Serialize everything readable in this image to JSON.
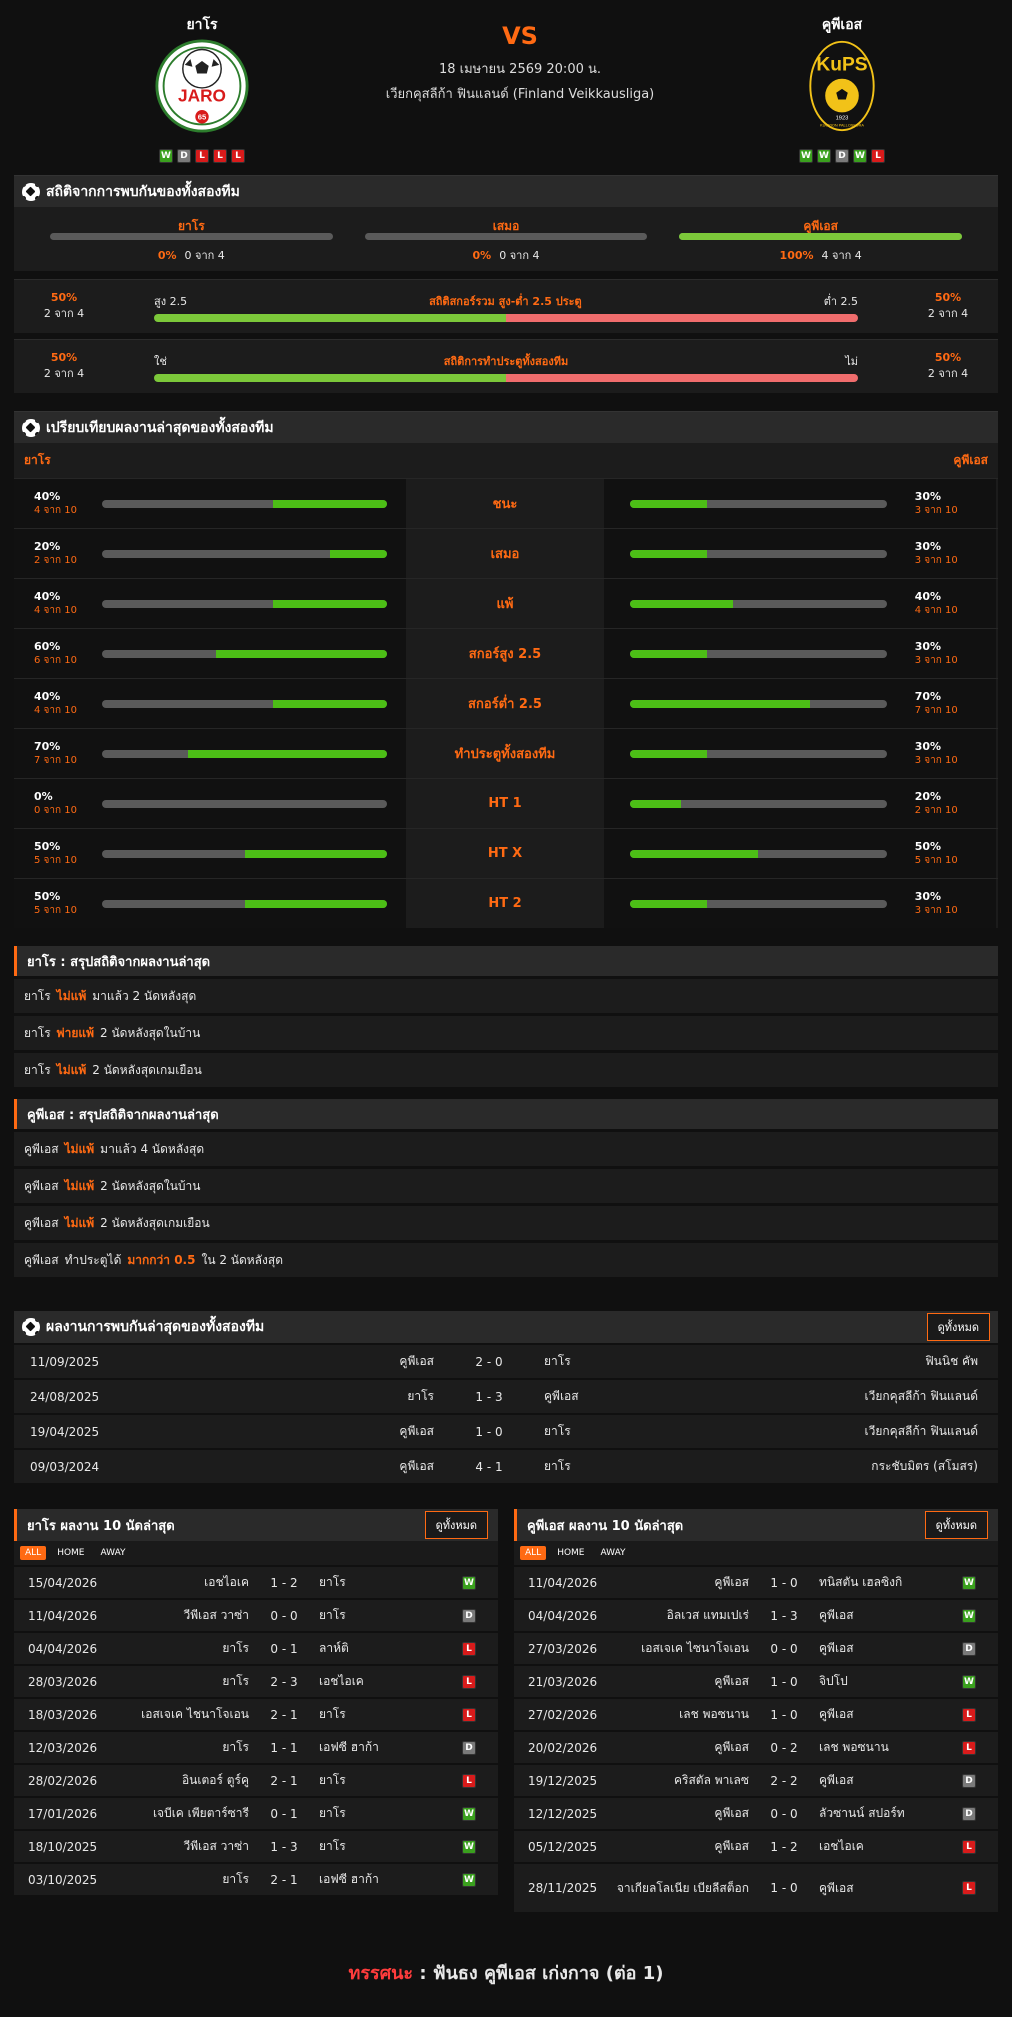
{
  "header": {
    "home_name": "ยาโร",
    "away_name": "คูพีเอส",
    "vs": "VS",
    "datetime": "18 เมษายน 2569 20:00 น.",
    "league": "เวียกคุสลีก้า ฟินแลนด์ (Finland Veikkausliga)",
    "home_form": [
      "W",
      "D",
      "L",
      "L",
      "L"
    ],
    "away_form": [
      "W",
      "W",
      "D",
      "W",
      "L"
    ],
    "home_logo_text": "JARO",
    "home_logo_year": "65",
    "away_logo_text": "KuPS",
    "away_logo_year": "1923",
    "away_logo_ring": "KUOPION PALLOSEURA"
  },
  "h2h_stats": {
    "title": "สถิติจากการพบกันของทั้งสองทีม",
    "cols": [
      {
        "label": "ยาโร",
        "pct": "0%",
        "count": "0 จาก 4",
        "fill": 0
      },
      {
        "label": "เสมอ",
        "pct": "0%",
        "count": "0 จาก 4",
        "fill": 0
      },
      {
        "label": "คูพีเอส",
        "pct": "100%",
        "count": "4 จาก 4",
        "fill": 1
      }
    ],
    "ou": {
      "left_pct": "50%",
      "left_count": "2 จาก 4",
      "left_label": "สูง 2.5",
      "center": "สถิติสกอร์รวม สูง-ต่ำ 2.5 ประตู",
      "right_label": "ต่ำ 2.5",
      "right_pct": "50%",
      "right_count": "2 จาก 4",
      "split": 0.5
    },
    "btts": {
      "left_pct": "50%",
      "left_count": "2 จาก 4",
      "left_label": "ใช่",
      "center": "สถิติการทำประตูทั้งสองทีม",
      "right_label": "ไม่",
      "right_pct": "50%",
      "right_count": "2 จาก 4",
      "split": 0.5
    }
  },
  "compare": {
    "title": "เปรียบเทียบผลงานล่าสุดของทั้งสองทีม",
    "home": "ยาโร",
    "away": "คูพีเอส",
    "rows": [
      {
        "label": "ชนะ",
        "hp": "40%",
        "hc": "4 จาก 10",
        "hv": 0.4,
        "ap": "30%",
        "ac": "3 จาก 10",
        "av": 0.3
      },
      {
        "label": "เสมอ",
        "hp": "20%",
        "hc": "2 จาก 10",
        "hv": 0.2,
        "ap": "30%",
        "ac": "3 จาก 10",
        "av": 0.3
      },
      {
        "label": "แพ้",
        "hp": "40%",
        "hc": "4 จาก 10",
        "hv": 0.4,
        "ap": "40%",
        "ac": "4 จาก 10",
        "av": 0.4
      },
      {
        "label": "สกอร์สูง 2.5",
        "hp": "60%",
        "hc": "6 จาก 10",
        "hv": 0.6,
        "ap": "30%",
        "ac": "3 จาก 10",
        "av": 0.3
      },
      {
        "label": "สกอร์ต่ำ 2.5",
        "hp": "40%",
        "hc": "4 จาก 10",
        "hv": 0.4,
        "ap": "70%",
        "ac": "7 จาก 10",
        "av": 0.7
      },
      {
        "label": "ทำประตูทั้งสองทีม",
        "hp": "70%",
        "hc": "7 จาก 10",
        "hv": 0.7,
        "ap": "30%",
        "ac": "3 จาก 10",
        "av": 0.3
      },
      {
        "label": "HT 1",
        "hp": "0%",
        "hc": "0 จาก 10",
        "hv": 0,
        "ap": "20%",
        "ac": "2 จาก 10",
        "av": 0.2
      },
      {
        "label": "HT X",
        "hp": "50%",
        "hc": "5 จาก 10",
        "hv": 0.5,
        "ap": "50%",
        "ac": "5 จาก 10",
        "av": 0.5
      },
      {
        "label": "HT 2",
        "hp": "50%",
        "hc": "5 จาก 10",
        "hv": 0.5,
        "ap": "30%",
        "ac": "3 จาก 10",
        "av": 0.3
      }
    ]
  },
  "home_summary": {
    "title": "ยาโร : สรุปสถิติจากผลงานล่าสุด",
    "rows": [
      {
        "team": "ยาโร",
        "hl": "ไม่แพ้",
        "rest": "มาแล้ว 2 นัดหลังสุด"
      },
      {
        "team": "ยาโร",
        "hl": "พ่ายแพ้",
        "rest": "2 นัดหลังสุดในบ้าน"
      },
      {
        "team": "ยาโร",
        "hl": "ไม่แพ้",
        "rest": "2 นัดหลังสุดเกมเยือน"
      }
    ]
  },
  "away_summary": {
    "title": "คูพีเอส : สรุปสถิติจากผลงานล่าสุด",
    "rows": [
      {
        "team": "คูพีเอส",
        "pre": "",
        "hl": "ไม่แพ้",
        "rest": "มาแล้ว 4 นัดหลังสุด"
      },
      {
        "team": "คูพีเอส",
        "pre": "",
        "hl": "ไม่แพ้",
        "rest": "2 นัดหลังสุดในบ้าน"
      },
      {
        "team": "คูพีเอส",
        "pre": "",
        "hl": "ไม่แพ้",
        "rest": "2 นัดหลังสุดเกมเยือน"
      },
      {
        "team": "คูพีเอส",
        "pre": "ทำประตูได้",
        "hl": "มากกว่า 0.5",
        "rest": "ใน 2 นัดหลังสุด"
      }
    ]
  },
  "h2h_results": {
    "title": "ผลงานการพบกันล่าสุดของทั้งสองทีม",
    "view_all": "ดูทั้งหมด",
    "rows": [
      {
        "date": "11/09/2025",
        "home": "คูพีเอส",
        "score": "2 - 0",
        "away": "ยาโร",
        "comp": "ฟินนิช คัพ"
      },
      {
        "date": "24/08/2025",
        "home": "ยาโร",
        "score": "1 - 3",
        "away": "คูพีเอส",
        "comp": "เวียกคุสลีก้า ฟินแลนด์"
      },
      {
        "date": "19/04/2025",
        "home": "คูพีเอส",
        "score": "1 - 0",
        "away": "ยาโร",
        "comp": "เวียกคุสลีก้า ฟินแลนด์"
      },
      {
        "date": "09/03/2024",
        "home": "คูพีเอส",
        "score": "4 - 1",
        "away": "ยาโร",
        "comp": "กระชับมิตร (สโมสร)"
      }
    ]
  },
  "home_last10": {
    "title": "ยาโร ผลงาน 10 นัดล่าสุด",
    "view_all": "ดูทั้งหมด",
    "tabs": [
      "ALL",
      "HOME",
      "AWAY"
    ],
    "rows": [
      {
        "date": "15/04/2026",
        "home": "เอชไอเค",
        "score": "1 - 2",
        "away": "ยาโร",
        "r": "W"
      },
      {
        "date": "11/04/2026",
        "home": "วีพีเอส วาซ่า",
        "score": "0 - 0",
        "away": "ยาโร",
        "r": "D"
      },
      {
        "date": "04/04/2026",
        "home": "ยาโร",
        "score": "0 - 1",
        "away": "ลาห์ติ",
        "r": "L"
      },
      {
        "date": "28/03/2026",
        "home": "ยาโร",
        "score": "2 - 3",
        "away": "เอชไอเค",
        "r": "L"
      },
      {
        "date": "18/03/2026",
        "home": "เอสเจเค ไชนาโจเอน",
        "score": "2 - 1",
        "away": "ยาโร",
        "r": "L"
      },
      {
        "date": "12/03/2026",
        "home": "ยาโร",
        "score": "1 - 1",
        "away": "เอฟซี ฮาก้า",
        "r": "D"
      },
      {
        "date": "28/02/2026",
        "home": "อินเตอร์ ตูร์คู",
        "score": "2 - 1",
        "away": "ยาโร",
        "r": "L"
      },
      {
        "date": "17/01/2026",
        "home": "เจบีเค เพียตาร์ซารี",
        "score": "0 - 1",
        "away": "ยาโร",
        "r": "W"
      },
      {
        "date": "18/10/2025",
        "home": "วีพีเอส วาซ่า",
        "score": "1 - 3",
        "away": "ยาโร",
        "r": "W"
      },
      {
        "date": "03/10/2025",
        "home": "ยาโร",
        "score": "2 - 1",
        "away": "เอฟซี ฮาก้า",
        "r": "W"
      }
    ]
  },
  "away_last10": {
    "title": "คูพีเอส ผลงาน 10 นัดล่าสุด",
    "view_all": "ดูทั้งหมด",
    "tabs": [
      "ALL",
      "HOME",
      "AWAY"
    ],
    "rows": [
      {
        "date": "11/04/2026",
        "home": "คูพีเอส",
        "score": "1 - 0",
        "away": "ทนิสตัน เฮลซิงกิ",
        "r": "W"
      },
      {
        "date": "04/04/2026",
        "home": "อิลเวส แทมเปเร่",
        "score": "1 - 3",
        "away": "คูพีเอส",
        "r": "W"
      },
      {
        "date": "27/03/2026",
        "home": "เอสเจเค ไซนาโจเอน",
        "score": "0 - 0",
        "away": "คูพีเอส",
        "r": "D"
      },
      {
        "date": "21/03/2026",
        "home": "คูพีเอส",
        "score": "1 - 0",
        "away": "จิปโป",
        "r": "W"
      },
      {
        "date": "27/02/2026",
        "home": "เลช พอซนาน",
        "score": "1 - 0",
        "away": "คูพีเอส",
        "r": "L"
      },
      {
        "date": "20/02/2026",
        "home": "คูพีเอส",
        "score": "0 - 2",
        "away": "เลช พอซนาน",
        "r": "L"
      },
      {
        "date": "19/12/2025",
        "home": "คริสตัล พาเลซ",
        "score": "2 - 2",
        "away": "คูพีเอส",
        "r": "D"
      },
      {
        "date": "12/12/2025",
        "home": "คูพีเอส",
        "score": "0 - 0",
        "away": "ลัวซานน์ สปอร์ท",
        "r": "D"
      },
      {
        "date": "05/12/2025",
        "home": "คูพีเอส",
        "score": "1 - 2",
        "away": "เอชไอเค",
        "r": "L"
      },
      {
        "date": "28/11/2025",
        "home": "จาเกียลโลเนีย เบียลีสต็อก",
        "score": "1 - 0",
        "away": "คูพีเอส",
        "r": "L"
      }
    ]
  },
  "footer": {
    "label": "ทรรศนะ",
    "sep": ":",
    "text": "ฟันธง คูพีเอส เก่งกาจ (ต่อ 1)"
  },
  "colors": {
    "accent": "#ff6a13",
    "win": "#3aa01e",
    "draw": "#7a7a7a",
    "loss": "#d81b1b",
    "bar_green": "#4cbe16"
  }
}
